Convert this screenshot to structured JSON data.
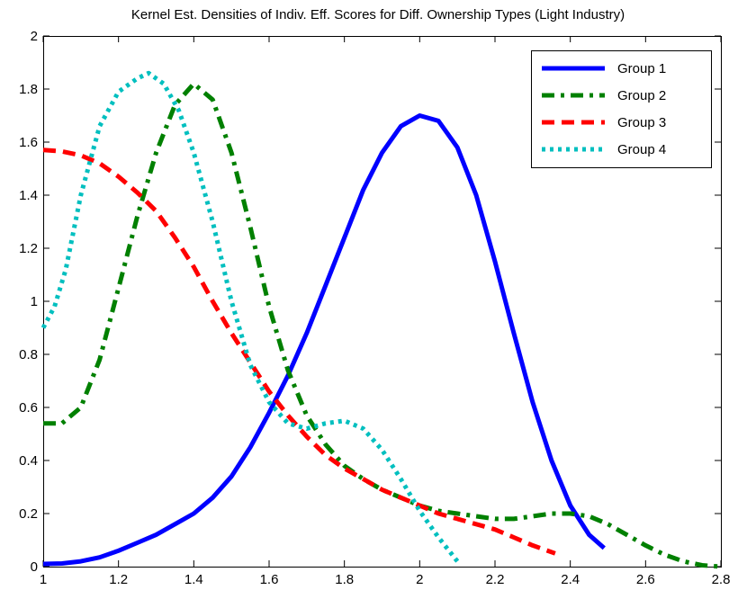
{
  "chart_data": {
    "type": "line",
    "title": "Kernel Est. Densities of Indiv. Eff. Scores for Diff. Ownership Types (Light Industry)",
    "xlabel": "",
    "ylabel": "",
    "xlim": [
      1,
      2.8
    ],
    "ylim": [
      0,
      2
    ],
    "x_ticks": [
      1,
      1.2,
      1.4,
      1.6,
      1.8,
      2,
      2.2,
      2.4,
      2.6,
      2.8
    ],
    "x_tick_labels": [
      "1",
      "1.2",
      "1.4",
      "1.6",
      "1.8",
      "2",
      "2.2",
      "2.4",
      "2.6",
      "2.8"
    ],
    "y_ticks": [
      0,
      0.2,
      0.4,
      0.6,
      0.8,
      1,
      1.2,
      1.4,
      1.6,
      1.8,
      2
    ],
    "y_tick_labels": [
      "0",
      "0.2",
      "0.4",
      "0.6",
      "0.8",
      "1",
      "1.2",
      "1.4",
      "1.6",
      "1.8",
      "2"
    ],
    "grid": false,
    "legend": {
      "position": "top-right"
    },
    "series": [
      {
        "name": "Group 1",
        "color": "#0000ff",
        "style": "solid",
        "points": [
          [
            1.0,
            0.01
          ],
          [
            1.05,
            0.012
          ],
          [
            1.1,
            0.02
          ],
          [
            1.15,
            0.035
          ],
          [
            1.2,
            0.06
          ],
          [
            1.25,
            0.09
          ],
          [
            1.3,
            0.12
          ],
          [
            1.35,
            0.16
          ],
          [
            1.4,
            0.2
          ],
          [
            1.45,
            0.26
          ],
          [
            1.5,
            0.34
          ],
          [
            1.55,
            0.45
          ],
          [
            1.6,
            0.58
          ],
          [
            1.65,
            0.72
          ],
          [
            1.7,
            0.88
          ],
          [
            1.75,
            1.06
          ],
          [
            1.8,
            1.24
          ],
          [
            1.85,
            1.42
          ],
          [
            1.9,
            1.56
          ],
          [
            1.95,
            1.66
          ],
          [
            2.0,
            1.7
          ],
          [
            2.05,
            1.68
          ],
          [
            2.1,
            1.58
          ],
          [
            2.15,
            1.4
          ],
          [
            2.2,
            1.15
          ],
          [
            2.25,
            0.88
          ],
          [
            2.3,
            0.62
          ],
          [
            2.35,
            0.4
          ],
          [
            2.4,
            0.23
          ],
          [
            2.45,
            0.12
          ],
          [
            2.49,
            0.07
          ]
        ]
      },
      {
        "name": "Group 2",
        "color": "#008000",
        "style": "dashdot",
        "points": [
          [
            1.0,
            0.54
          ],
          [
            1.05,
            0.54
          ],
          [
            1.1,
            0.6
          ],
          [
            1.15,
            0.78
          ],
          [
            1.2,
            1.05
          ],
          [
            1.25,
            1.32
          ],
          [
            1.3,
            1.56
          ],
          [
            1.35,
            1.74
          ],
          [
            1.4,
            1.82
          ],
          [
            1.45,
            1.76
          ],
          [
            1.5,
            1.56
          ],
          [
            1.55,
            1.28
          ],
          [
            1.6,
            0.98
          ],
          [
            1.65,
            0.74
          ],
          [
            1.7,
            0.57
          ],
          [
            1.75,
            0.46
          ],
          [
            1.8,
            0.38
          ],
          [
            1.85,
            0.33
          ],
          [
            1.9,
            0.29
          ],
          [
            1.95,
            0.26
          ],
          [
            2.0,
            0.23
          ],
          [
            2.05,
            0.21
          ],
          [
            2.1,
            0.2
          ],
          [
            2.15,
            0.19
          ],
          [
            2.2,
            0.18
          ],
          [
            2.25,
            0.18
          ],
          [
            2.3,
            0.19
          ],
          [
            2.35,
            0.2
          ],
          [
            2.4,
            0.2
          ],
          [
            2.45,
            0.19
          ],
          [
            2.5,
            0.16
          ],
          [
            2.55,
            0.12
          ],
          [
            2.6,
            0.08
          ],
          [
            2.65,
            0.045
          ],
          [
            2.7,
            0.02
          ],
          [
            2.75,
            0.005
          ],
          [
            2.8,
            0.0
          ]
        ]
      },
      {
        "name": "Group 3",
        "color": "#ff0000",
        "style": "dashed",
        "points": [
          [
            1.0,
            1.57
          ],
          [
            1.05,
            1.565
          ],
          [
            1.1,
            1.55
          ],
          [
            1.15,
            1.52
          ],
          [
            1.2,
            1.47
          ],
          [
            1.25,
            1.41
          ],
          [
            1.3,
            1.34
          ],
          [
            1.35,
            1.24
          ],
          [
            1.4,
            1.13
          ],
          [
            1.45,
            1.0
          ],
          [
            1.5,
            0.88
          ],
          [
            1.55,
            0.77
          ],
          [
            1.6,
            0.66
          ],
          [
            1.65,
            0.57
          ],
          [
            1.7,
            0.49
          ],
          [
            1.75,
            0.42
          ],
          [
            1.8,
            0.37
          ],
          [
            1.85,
            0.33
          ],
          [
            1.9,
            0.29
          ],
          [
            1.95,
            0.26
          ],
          [
            2.0,
            0.23
          ],
          [
            2.05,
            0.2
          ],
          [
            2.1,
            0.18
          ],
          [
            2.15,
            0.16
          ],
          [
            2.2,
            0.14
          ],
          [
            2.25,
            0.11
          ],
          [
            2.3,
            0.08
          ],
          [
            2.36,
            0.05
          ]
        ]
      },
      {
        "name": "Group 4",
        "color": "#00bfbf",
        "style": "dotted",
        "points": [
          [
            1.0,
            0.9
          ],
          [
            1.03,
            0.98
          ],
          [
            1.06,
            1.12
          ],
          [
            1.1,
            1.4
          ],
          [
            1.15,
            1.66
          ],
          [
            1.2,
            1.79
          ],
          [
            1.25,
            1.84
          ],
          [
            1.28,
            1.86
          ],
          [
            1.32,
            1.82
          ],
          [
            1.36,
            1.72
          ],
          [
            1.4,
            1.56
          ],
          [
            1.45,
            1.3
          ],
          [
            1.5,
            1.0
          ],
          [
            1.55,
            0.76
          ],
          [
            1.6,
            0.62
          ],
          [
            1.65,
            0.54
          ],
          [
            1.7,
            0.52
          ],
          [
            1.75,
            0.54
          ],
          [
            1.8,
            0.55
          ],
          [
            1.85,
            0.52
          ],
          [
            1.9,
            0.44
          ],
          [
            1.95,
            0.33
          ],
          [
            2.0,
            0.21
          ],
          [
            2.05,
            0.11
          ],
          [
            2.1,
            0.02
          ]
        ]
      }
    ]
  }
}
